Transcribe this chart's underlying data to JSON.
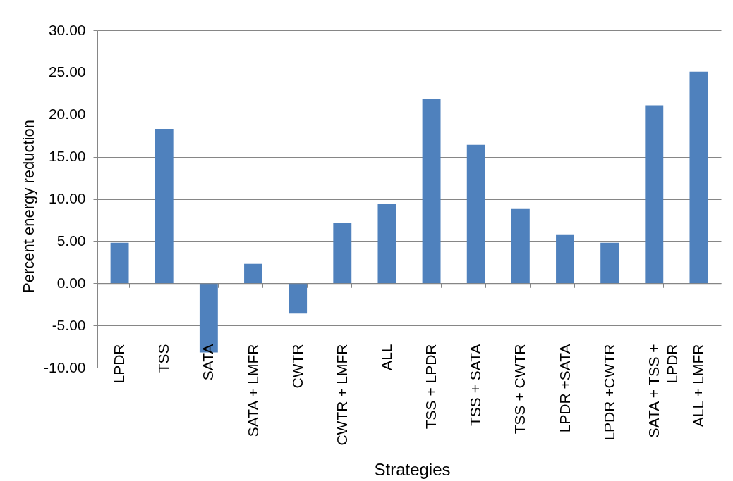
{
  "chart_data": {
    "type": "bar",
    "xlabel": "Strategies",
    "ylabel": "Percent energy reduction",
    "categories": [
      "LPDR",
      "TSS",
      "SATA",
      "SATA + LMFR",
      "CWTR",
      "CWTR + LMFR",
      "ALL",
      "TSS + LPDR",
      "TSS + SATA",
      "TSS + CWTR",
      "LPDR +SATA",
      "LPDR +CWTR",
      "SATA + TSS + LPDR",
      "ALL + LMFR"
    ],
    "values": [
      4.8,
      18.3,
      -8.2,
      2.3,
      -3.6,
      7.2,
      9.4,
      21.9,
      16.4,
      8.8,
      5.8,
      4.8,
      21.1,
      25.1
    ],
    "color": "#4f81bd",
    "ylim": [
      -10,
      30
    ],
    "yticks": [
      {
        "value": -10,
        "label": "-10.00"
      },
      {
        "value": -5,
        "label": "-5.00"
      },
      {
        "value": 0,
        "label": "0.00"
      },
      {
        "value": 5,
        "label": "5.00"
      },
      {
        "value": 10,
        "label": "10.00"
      },
      {
        "value": 15,
        "label": "15.00"
      },
      {
        "value": 20,
        "label": "20.00"
      },
      {
        "value": 25,
        "label": "25.00"
      },
      {
        "value": 30,
        "label": "30.00"
      }
    ],
    "grid": "y"
  }
}
